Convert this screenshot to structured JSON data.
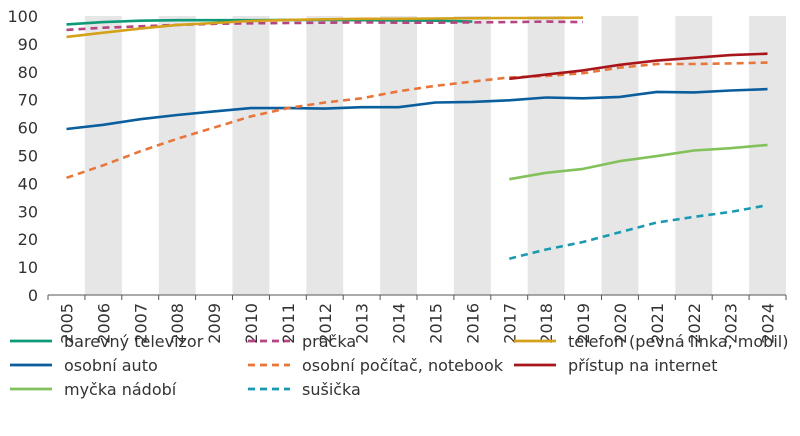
{
  "chart_data": {
    "type": "line",
    "title": "",
    "xlabel": "",
    "ylabel": "",
    "ylim": [
      0,
      100
    ],
    "yticks": [
      0,
      10,
      20,
      30,
      40,
      50,
      60,
      70,
      80,
      90,
      100
    ],
    "x": [
      "2005",
      "2006",
      "2007",
      "2008",
      "2009",
      "2010",
      "2011",
      "2012",
      "2013",
      "2014",
      "2015",
      "2016",
      "2017",
      "2018",
      "2019",
      "2020",
      "2021",
      "2022",
      "2023",
      "2024"
    ],
    "grid": "alternating vertical bands",
    "legend_position": "bottom",
    "series": [
      {
        "name": "barevný televizor",
        "color": "#0e9a76",
        "dash": "solid",
        "x": [
          "2005",
          "2006",
          "2007",
          "2008",
          "2009",
          "2010",
          "2011",
          "2012",
          "2013",
          "2014",
          "2015",
          "2016"
        ],
        "values": [
          97,
          97.8,
          98.3,
          98.5,
          98.5,
          98.5,
          98.6,
          98.6,
          98.5,
          98.4,
          98.3,
          98
        ]
      },
      {
        "name": "pračka",
        "color": "#b34582",
        "dash": "dashed",
        "x": [
          "2005",
          "2006",
          "2007",
          "2008",
          "2009",
          "2010",
          "2011",
          "2012",
          "2013",
          "2014",
          "2015",
          "2016",
          "2017",
          "2018",
          "2019"
        ],
        "values": [
          95,
          95.8,
          96.3,
          96.8,
          97.2,
          97.4,
          97.5,
          97.6,
          97.7,
          97.6,
          97.6,
          97.7,
          97.8,
          98,
          97.8
        ]
      },
      {
        "name": "telefon (pevná linka, mobil)",
        "color": "#d4a21a",
        "dash": "solid",
        "x": [
          "2005",
          "2006",
          "2007",
          "2008",
          "2009",
          "2010",
          "2011",
          "2012",
          "2013",
          "2014",
          "2015",
          "2016",
          "2017",
          "2018",
          "2019"
        ],
        "values": [
          92.5,
          94,
          95.5,
          96.8,
          97.5,
          98.2,
          98.6,
          98.8,
          99,
          99,
          99.1,
          99.2,
          99.3,
          99.3,
          99.4
        ]
      },
      {
        "name": "osobní auto",
        "color": "#0a5e9e",
        "dash": "solid",
        "x": [
          "2005",
          "2006",
          "2007",
          "2008",
          "2009",
          "2010",
          "2011",
          "2012",
          "2013",
          "2014",
          "2015",
          "2016",
          "2017",
          "2018",
          "2019",
          "2020",
          "2021",
          "2022",
          "2023",
          "2024"
        ],
        "values": [
          59.5,
          61,
          63,
          64.5,
          65.8,
          67,
          67,
          66.8,
          67.3,
          67.3,
          69,
          69.2,
          69.8,
          70.8,
          70.5,
          71,
          72.8,
          72.6,
          73.3,
          73.8
        ]
      },
      {
        "name": "osobní počítač, notebook",
        "color": "#e8763a",
        "dash": "dashed",
        "x": [
          "2005",
          "2006",
          "2007",
          "2008",
          "2009",
          "2010",
          "2011",
          "2012",
          "2013",
          "2014",
          "2015",
          "2016",
          "2017",
          "2018",
          "2019",
          "2020",
          "2021",
          "2022",
          "2023",
          "2024"
        ],
        "values": [
          42,
          46.5,
          51.5,
          56,
          60,
          64,
          67,
          69,
          70.5,
          73,
          75,
          76.5,
          78,
          78.5,
          79.5,
          81.5,
          82.8,
          82.8,
          83,
          83.3
        ]
      },
      {
        "name": "přístup na internet",
        "color": "#a8161b",
        "dash": "solid",
        "x": [
          "2017",
          "2018",
          "2019",
          "2020",
          "2021",
          "2022",
          "2023",
          "2024"
        ],
        "values": [
          77.5,
          79,
          80.5,
          82.5,
          84,
          85,
          86,
          86.5
        ]
      },
      {
        "name": "myčka nádobí",
        "color": "#83c15a",
        "dash": "solid",
        "x": [
          "2017",
          "2018",
          "2019",
          "2020",
          "2021",
          "2022",
          "2023",
          "2024"
        ],
        "values": [
          41.5,
          43.8,
          45.2,
          48,
          49.8,
          51.8,
          52.6,
          53.8
        ]
      },
      {
        "name": "sušička",
        "color": "#1a9ab0",
        "dash": "dashed",
        "x": [
          "2017",
          "2018",
          "2019",
          "2020",
          "2021",
          "2022",
          "2023",
          "2024"
        ],
        "values": [
          13,
          16.3,
          19,
          22.5,
          26,
          28,
          29.8,
          32.2
        ]
      }
    ]
  }
}
